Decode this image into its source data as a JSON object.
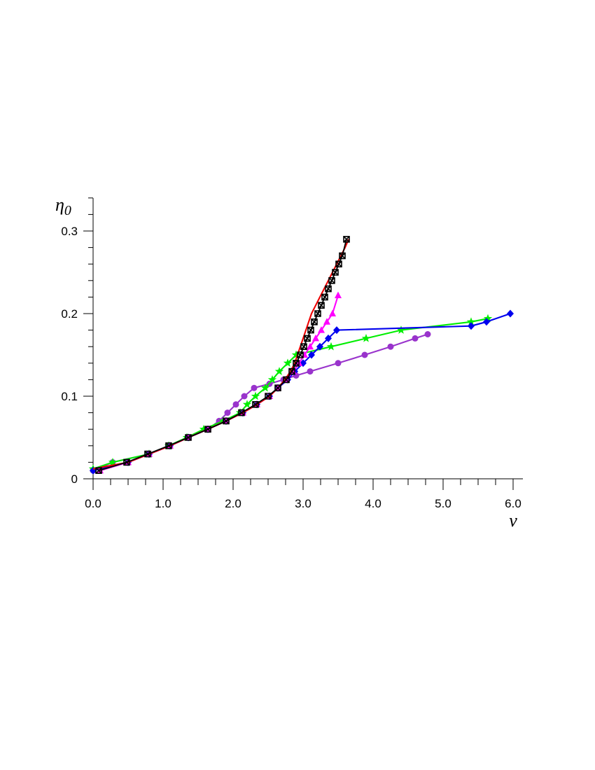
{
  "chart_data": {
    "type": "line",
    "title": "",
    "xlabel": "v",
    "ylabel": "η0",
    "xlim": [
      0,
      6
    ],
    "ylim": [
      0,
      0.34
    ],
    "x_ticks": [
      0,
      1,
      2,
      3,
      4,
      5,
      6
    ],
    "x_tick_labels": [
      "0.0",
      "1.0",
      "2.0",
      "3.0",
      "4.0",
      "5.0",
      "6.0"
    ],
    "y_ticks": [
      0,
      0.1,
      0.2,
      0.3
    ],
    "y_tick_labels": [
      "0",
      "0.1",
      "0.2",
      "0.3"
    ],
    "grid": false,
    "legend": "none",
    "series": [
      {
        "color": "#9933CC",
        "marker": "circle",
        "x": [
          0.0,
          0.28,
          0.8,
          1.08,
          1.36,
          1.64,
          1.8,
          1.92,
          2.04,
          2.16,
          2.3,
          2.52,
          2.72,
          2.9,
          3.1,
          3.5,
          3.88,
          4.25,
          4.6,
          4.78
        ],
        "y": [
          0.01,
          0.02,
          0.03,
          0.04,
          0.05,
          0.06,
          0.07,
          0.08,
          0.09,
          0.1,
          0.11,
          0.115,
          0.12,
          0.125,
          0.13,
          0.14,
          0.15,
          0.16,
          0.17,
          0.175
        ]
      },
      {
        "color": "#00EE00",
        "marker": "star",
        "x": [
          0.0,
          0.28,
          0.8,
          1.08,
          1.34,
          1.58,
          1.86,
          2.1,
          2.2,
          2.32,
          2.46,
          2.56,
          2.66,
          2.78,
          2.9,
          3.4,
          3.9,
          4.4,
          5.4,
          5.64
        ],
        "y": [
          0.012,
          0.02,
          0.03,
          0.04,
          0.05,
          0.06,
          0.07,
          0.08,
          0.09,
          0.1,
          0.11,
          0.12,
          0.13,
          0.14,
          0.15,
          0.16,
          0.17,
          0.18,
          0.19,
          0.194
        ]
      },
      {
        "color": "#0000EE",
        "marker": "diamond",
        "x": [
          0.0,
          0.5,
          0.8,
          1.1,
          1.36,
          1.64,
          1.9,
          2.14,
          2.34,
          2.52,
          2.64,
          2.78,
          2.88,
          3.0,
          3.12,
          3.24,
          3.36,
          3.48,
          5.4,
          5.62,
          5.96
        ],
        "y": [
          0.01,
          0.02,
          0.03,
          0.04,
          0.05,
          0.06,
          0.07,
          0.08,
          0.09,
          0.1,
          0.11,
          0.12,
          0.13,
          0.14,
          0.15,
          0.16,
          0.17,
          0.18,
          0.185,
          0.19,
          0.2
        ]
      },
      {
        "color": "#FF00FF",
        "marker": "triangle",
        "x": [
          0.1,
          0.5,
          0.8,
          1.1,
          1.36,
          1.64,
          1.9,
          2.14,
          2.34,
          2.52,
          2.64,
          2.76,
          2.86,
          2.94,
          3.02,
          3.1,
          3.18,
          3.26,
          3.34,
          3.42,
          3.5
        ],
        "y": [
          0.01,
          0.02,
          0.03,
          0.04,
          0.05,
          0.06,
          0.07,
          0.08,
          0.09,
          0.1,
          0.11,
          0.12,
          0.13,
          0.14,
          0.15,
          0.16,
          0.17,
          0.18,
          0.19,
          0.2,
          0.222
        ]
      },
      {
        "color": "#EE0000",
        "marker": "none",
        "x": [
          0.0,
          0.5,
          0.8,
          1.1,
          1.36,
          1.64,
          1.9,
          2.14,
          2.34,
          2.52,
          2.64,
          2.74,
          2.82,
          2.88,
          2.94,
          3.0,
          3.06,
          3.12,
          3.18,
          3.24,
          3.3,
          3.36,
          3.42,
          3.48,
          3.54,
          3.6,
          3.65
        ],
        "y": [
          0.012,
          0.02,
          0.03,
          0.04,
          0.05,
          0.06,
          0.07,
          0.08,
          0.09,
          0.1,
          0.11,
          0.12,
          0.13,
          0.14,
          0.155,
          0.17,
          0.185,
          0.2,
          0.21,
          0.22,
          0.23,
          0.24,
          0.25,
          0.26,
          0.27,
          0.28,
          0.29
        ]
      },
      {
        "color": "#000000",
        "marker": "square",
        "x": [
          0.08,
          0.48,
          0.78,
          1.08,
          1.36,
          1.64,
          1.9,
          2.12,
          2.32,
          2.5,
          2.64,
          2.76,
          2.84,
          2.9,
          2.96,
          3.01,
          3.06,
          3.11,
          3.16,
          3.21,
          3.26,
          3.31,
          3.36,
          3.41,
          3.46,
          3.51,
          3.56,
          3.62
        ],
        "y": [
          0.01,
          0.02,
          0.03,
          0.04,
          0.05,
          0.06,
          0.07,
          0.08,
          0.09,
          0.1,
          0.11,
          0.12,
          0.13,
          0.14,
          0.15,
          0.16,
          0.17,
          0.18,
          0.19,
          0.2,
          0.21,
          0.22,
          0.23,
          0.24,
          0.25,
          0.26,
          0.27,
          0.29
        ]
      }
    ]
  }
}
